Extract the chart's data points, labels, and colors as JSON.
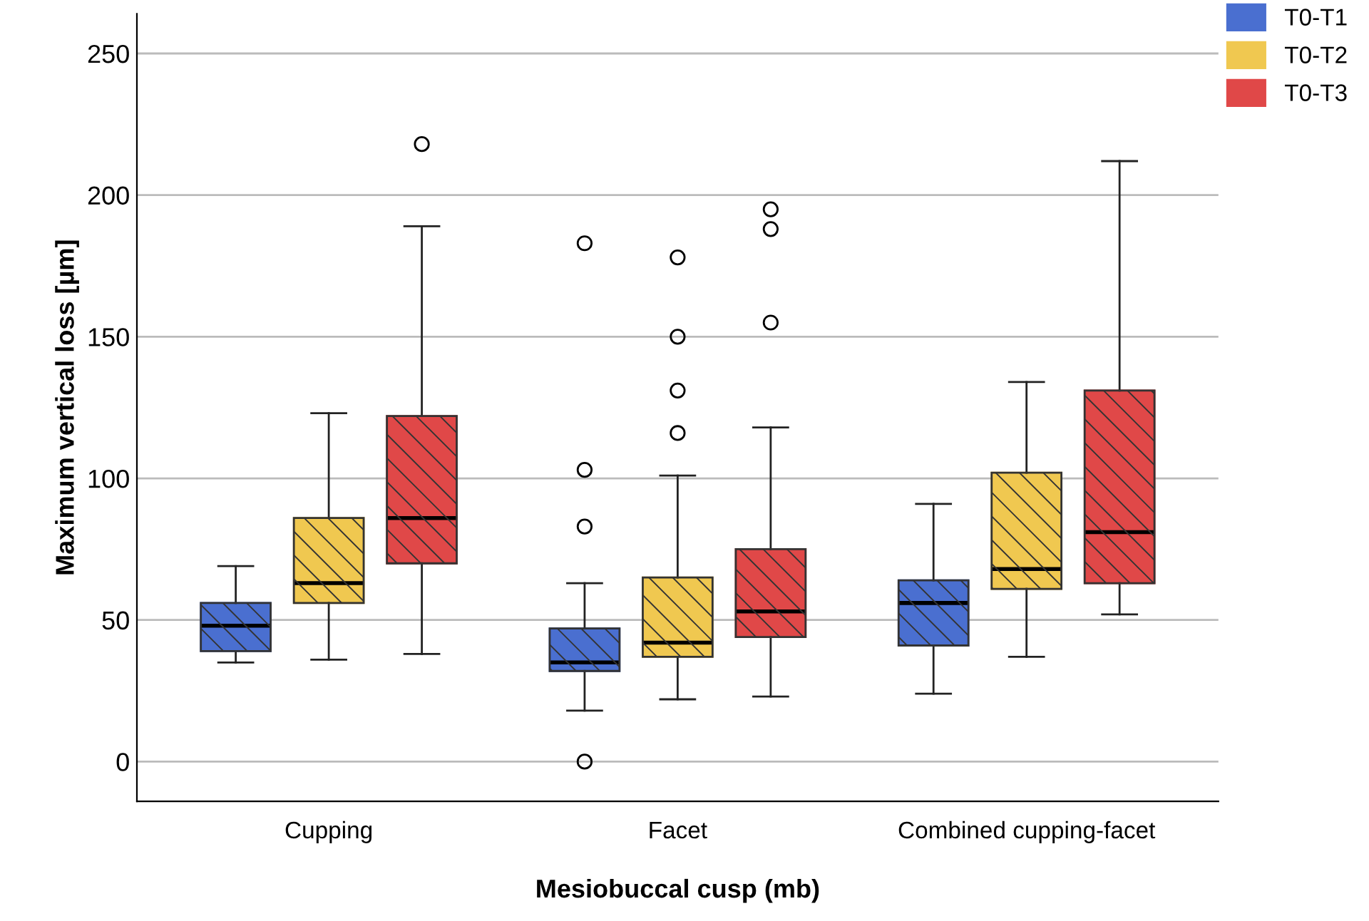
{
  "chart_data": {
    "type": "box",
    "xlabel": "Mesiobuccal cusp (mb)",
    "ylabel": "Maximum vertical loss [µm]",
    "categories": [
      "Cupping",
      "Facet",
      "Combined cupping-facet"
    ],
    "ylim": [
      -14,
      264
    ],
    "yticks": [
      0,
      50,
      100,
      150,
      200,
      250
    ],
    "grid": "y",
    "legend": "top right",
    "series": [
      {
        "name": "T0-T1",
        "color": "#4a6fd0",
        "boxes": [
          {
            "low": 35,
            "q1": 39,
            "median": 48,
            "q3": 56,
            "high": 69
          },
          {
            "low": 18,
            "q1": 32,
            "median": 35,
            "q3": 47,
            "high": 63,
            "outliers": [
              0,
              83,
              103,
              183
            ]
          },
          {
            "low": 24,
            "q1": 41,
            "median": 56,
            "q3": 64,
            "high": 91
          }
        ]
      },
      {
        "name": "T0-T2",
        "color": "#f0c850",
        "boxes": [
          {
            "low": 36,
            "q1": 56,
            "median": 63,
            "q3": 86,
            "high": 123
          },
          {
            "low": 22,
            "q1": 37,
            "median": 42,
            "q3": 65,
            "high": 101,
            "outliers": [
              116,
              131,
              150,
              178
            ]
          },
          {
            "low": 37,
            "q1": 61,
            "median": 68,
            "q3": 102,
            "high": 134
          }
        ]
      },
      {
        "name": "T0-T3",
        "color": "#e04848",
        "boxes": [
          {
            "low": 38,
            "q1": 70,
            "median": 86,
            "q3": 122,
            "high": 189,
            "outliers": [
              218
            ]
          },
          {
            "low": 23,
            "q1": 44,
            "median": 53,
            "q3": 75,
            "high": 118,
            "outliers": [
              155,
              188,
              195
            ]
          },
          {
            "low": 52,
            "q1": 63,
            "median": 81,
            "q3": 131,
            "high": 212
          }
        ]
      }
    ]
  }
}
